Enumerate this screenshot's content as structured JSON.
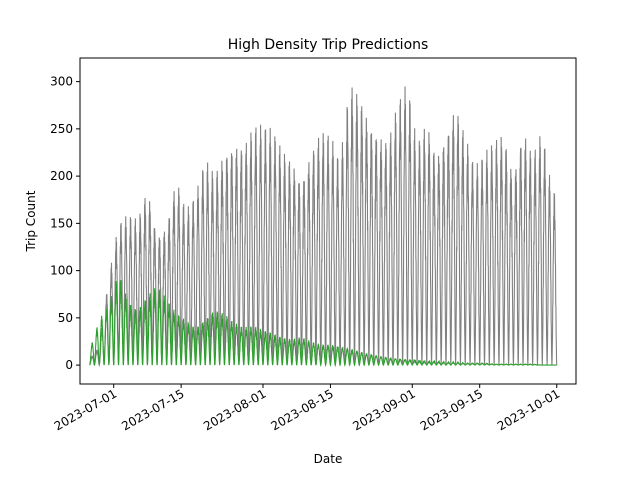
{
  "chart_data": {
    "type": "line",
    "title": "High Density Trip Predictions",
    "xlabel": "Date",
    "ylabel": "Trip Count",
    "x_range": [
      "2023-06-24",
      "2023-10-05"
    ],
    "y_range": [
      -20,
      325
    ],
    "x_ticks": [
      "2023-07-01",
      "2023-07-15",
      "2023-08-01",
      "2023-08-15",
      "2023-09-01",
      "2023-09-15",
      "2023-10-01"
    ],
    "y_ticks": [
      0,
      50,
      100,
      150,
      200,
      250,
      300
    ],
    "grid": false,
    "legend": "none",
    "series": [
      {
        "color": "#808080",
        "style": "dense hourly oscillation (estimated daily peaks)",
        "x": [
          "2023-06-28",
          "2023-06-30",
          "2023-07-02",
          "2023-07-04",
          "2023-07-06",
          "2023-07-08",
          "2023-07-10",
          "2023-07-12",
          "2023-07-14",
          "2023-07-16",
          "2023-07-18",
          "2023-07-20",
          "2023-07-22",
          "2023-07-24",
          "2023-07-26",
          "2023-07-28",
          "2023-07-30",
          "2023-08-01",
          "2023-08-03",
          "2023-08-05",
          "2023-08-07",
          "2023-08-09",
          "2023-08-11",
          "2023-08-13",
          "2023-08-15",
          "2023-08-17",
          "2023-08-19",
          "2023-08-21",
          "2023-08-23",
          "2023-08-25",
          "2023-08-27",
          "2023-08-29",
          "2023-08-31",
          "2023-09-02",
          "2023-09-04",
          "2023-09-06",
          "2023-09-08",
          "2023-09-10",
          "2023-09-12",
          "2023-09-14",
          "2023-09-16",
          "2023-09-18",
          "2023-09-20",
          "2023-09-22",
          "2023-09-24",
          "2023-09-26",
          "2023-09-28",
          "2023-09-30"
        ],
        "y": [
          20,
          95,
          150,
          160,
          155,
          190,
          140,
          150,
          200,
          165,
          180,
          220,
          205,
          230,
          240,
          235,
          255,
          255,
          250,
          230,
          220,
          200,
          230,
          250,
          245,
          215,
          300,
          290,
          265,
          250,
          240,
          280,
          300,
          235,
          260,
          225,
          250,
          280,
          245,
          210,
          225,
          240,
          250,
          205,
          255,
          225,
          250,
          185
        ]
      },
      {
        "color": "#2ca02c",
        "style": "dense hourly oscillation (estimated daily peaks)",
        "x": [
          "2023-06-28",
          "2023-06-30",
          "2023-07-02",
          "2023-07-04",
          "2023-07-06",
          "2023-07-08",
          "2023-07-10",
          "2023-07-12",
          "2023-07-14",
          "2023-07-16",
          "2023-07-18",
          "2023-07-20",
          "2023-07-22",
          "2023-07-24",
          "2023-07-26",
          "2023-07-28",
          "2023-07-30",
          "2023-08-01",
          "2023-08-03",
          "2023-08-05",
          "2023-08-07",
          "2023-08-09",
          "2023-08-11",
          "2023-08-13",
          "2023-08-15",
          "2023-08-17",
          "2023-08-19",
          "2023-08-21",
          "2023-08-23",
          "2023-08-25",
          "2023-08-27",
          "2023-08-29",
          "2023-08-31",
          "2023-09-02",
          "2023-09-04",
          "2023-09-06",
          "2023-09-08",
          "2023-09-10",
          "2023-09-12",
          "2023-09-14",
          "2023-09-16",
          "2023-09-18",
          "2023-09-20",
          "2023-09-22",
          "2023-09-24",
          "2023-09-26",
          "2023-09-28",
          "2023-09-30"
        ],
        "y": [
          48,
          65,
          100,
          70,
          60,
          75,
          85,
          70,
          55,
          48,
          40,
          50,
          60,
          55,
          45,
          40,
          42,
          38,
          35,
          30,
          28,
          30,
          25,
          22,
          22,
          20,
          18,
          15,
          12,
          10,
          8,
          7,
          6,
          5,
          4,
          4,
          3,
          3,
          2,
          2,
          2,
          1,
          1,
          1,
          1,
          1,
          0,
          0
        ]
      }
    ]
  }
}
